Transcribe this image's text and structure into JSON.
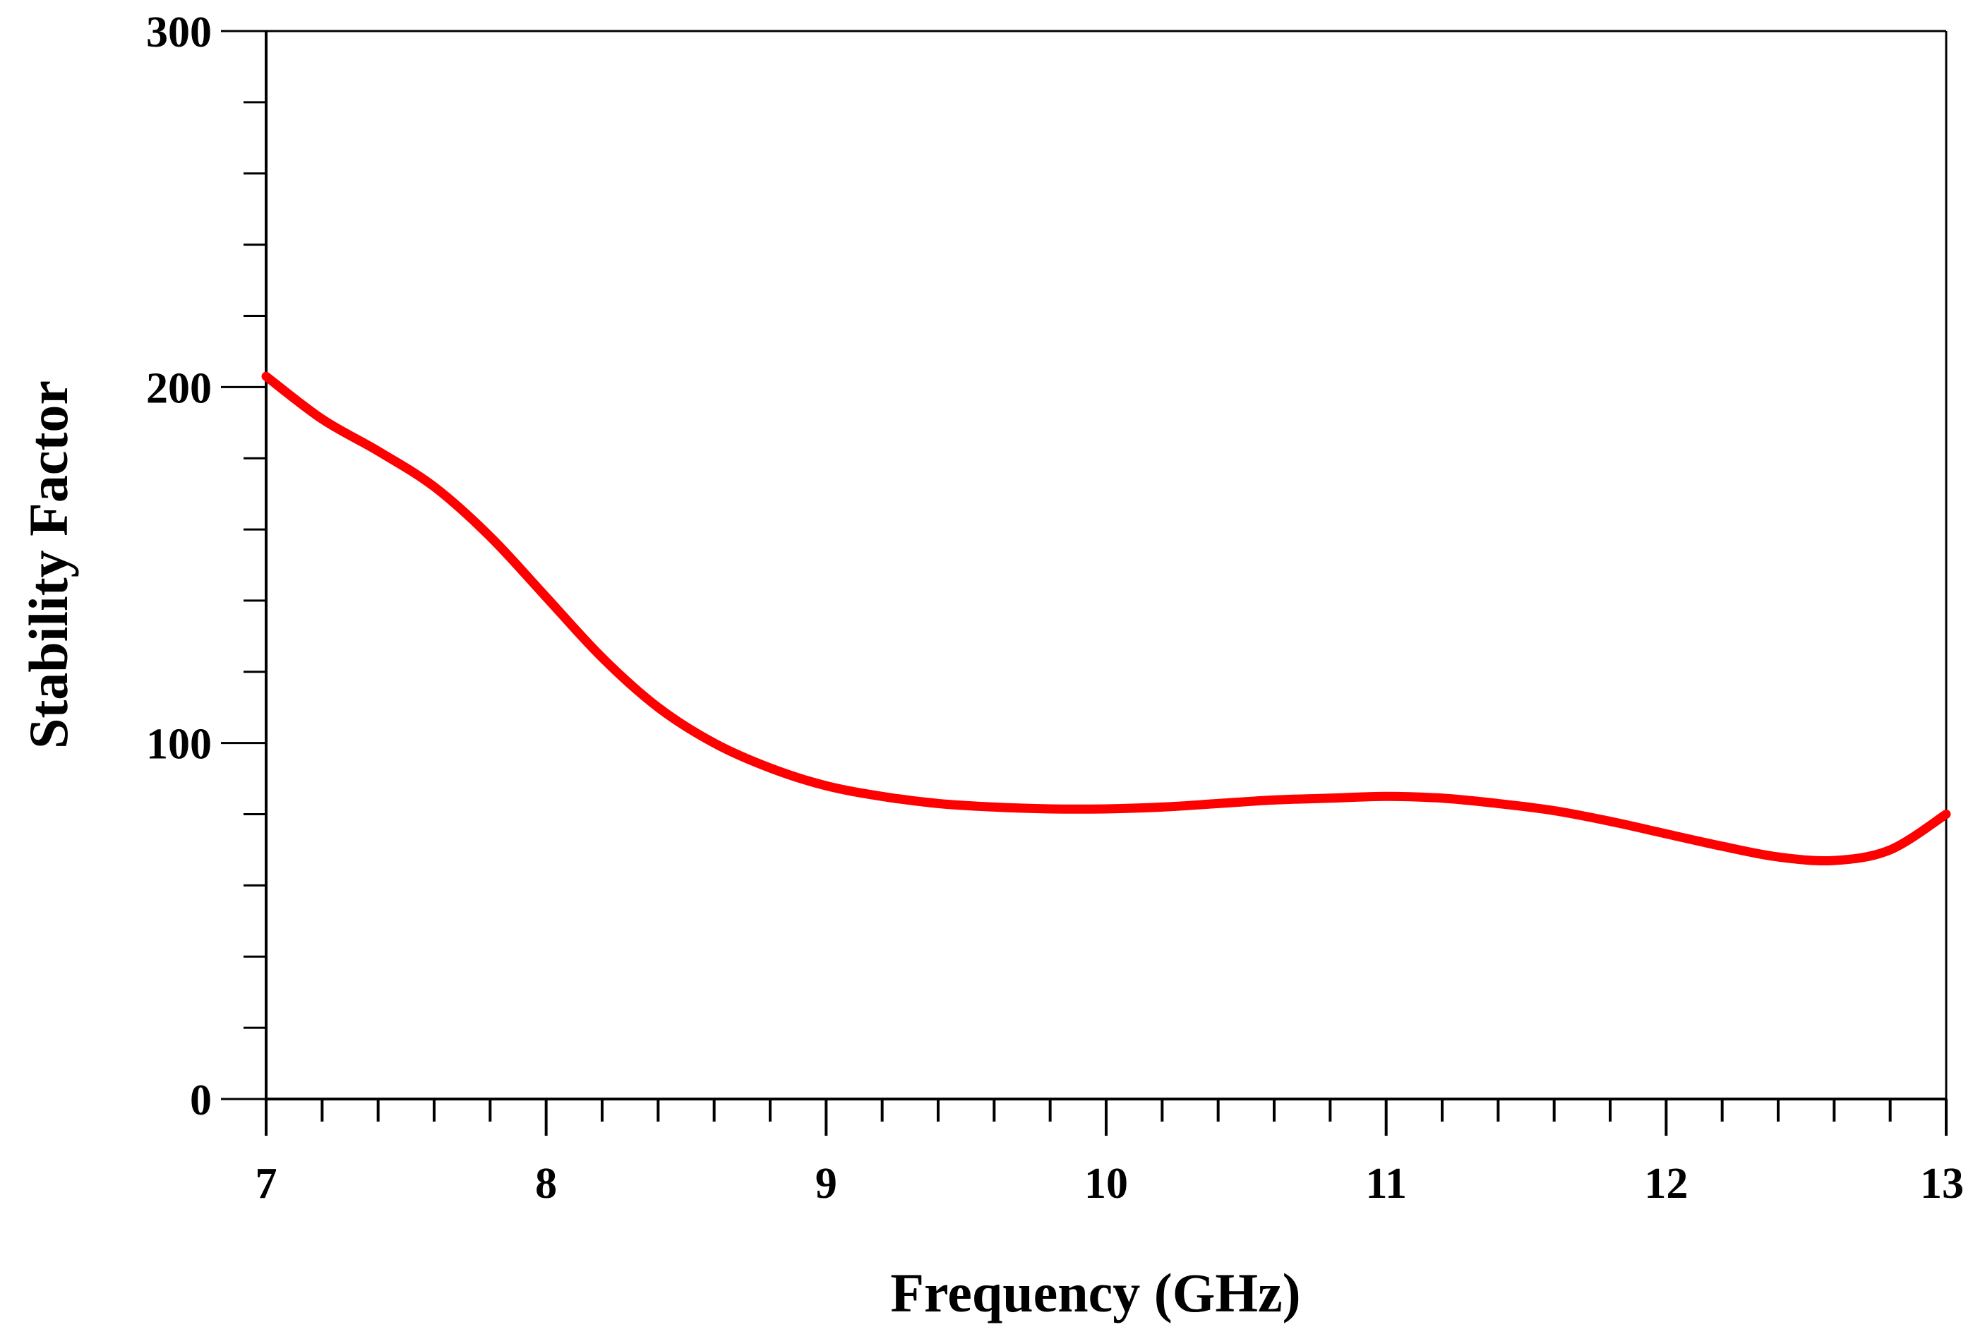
{
  "chart_data": {
    "type": "line",
    "title": "",
    "xlabel": "Frequency (GHz)",
    "ylabel": "Stability Factor",
    "xlim": [
      7,
      13
    ],
    "ylim": [
      0,
      300
    ],
    "x_ticks": [
      "7",
      "8",
      "9",
      "10",
      "11",
      "12",
      "13"
    ],
    "y_ticks": [
      "0",
      "100",
      "200",
      "300"
    ],
    "x_minor_step": 0.2,
    "y_minor_step": 20,
    "grid": false,
    "series": [
      {
        "name": "Stability Factor",
        "color": "#ff0000",
        "x": [
          7.0,
          7.2,
          7.4,
          7.6,
          7.8,
          8.0,
          8.2,
          8.4,
          8.6,
          8.8,
          9.0,
          9.2,
          9.4,
          9.6,
          9.8,
          10.0,
          10.2,
          10.4,
          10.6,
          10.8,
          11.0,
          11.2,
          11.4,
          11.6,
          11.8,
          12.0,
          12.2,
          12.4,
          12.6,
          12.8,
          13.0
        ],
        "values": [
          203,
          191,
          182,
          172,
          158,
          141,
          124,
          110,
          100,
          93,
          88,
          85,
          83,
          82,
          81.5,
          81.5,
          82,
          83,
          84,
          84.5,
          85,
          84.5,
          83,
          81,
          78,
          74.5,
          71,
          68,
          67,
          70,
          80
        ]
      }
    ]
  }
}
